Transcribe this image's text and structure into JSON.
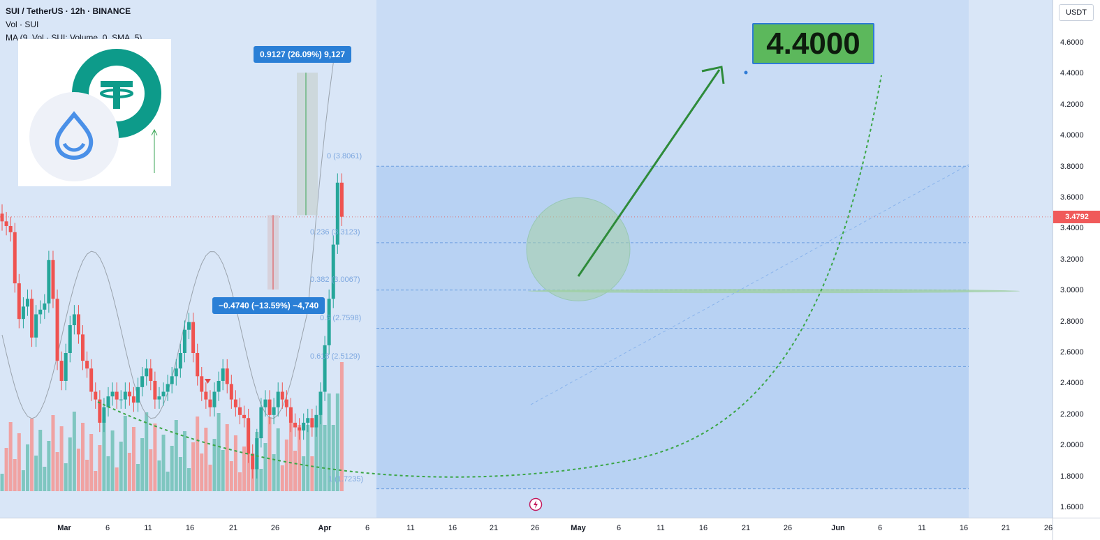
{
  "header": {
    "symbol_line": "SUI / TetherUS · 12h · BINANCE",
    "vol_line": "Vol · SUI",
    "ma_line": "MA (9, Vol · SUI: Volume, 0, SMA, 5)"
  },
  "price_axis": {
    "currency_button": "USDT",
    "ticks": [
      "4.6000",
      "4.4000",
      "4.2000",
      "4.0000",
      "3.8000",
      "3.6000",
      "3.4000",
      "3.2000",
      "3.0000",
      "2.8000",
      "2.6000",
      "2.4000",
      "2.2000",
      "2.0000",
      "1.8000",
      "1.6000"
    ],
    "current_price": "3.4792"
  },
  "time_axis": {
    "ticks": [
      {
        "label": "Mar",
        "bold": true
      },
      {
        "label": "6",
        "bold": false
      },
      {
        "label": "11",
        "bold": false
      },
      {
        "label": "16",
        "bold": false
      },
      {
        "label": "21",
        "bold": false
      },
      {
        "label": "26",
        "bold": false
      },
      {
        "label": "Apr",
        "bold": true
      },
      {
        "label": "6",
        "bold": false
      },
      {
        "label": "11",
        "bold": false
      },
      {
        "label": "16",
        "bold": false
      },
      {
        "label": "21",
        "bold": false
      },
      {
        "label": "26",
        "bold": false
      },
      {
        "label": "May",
        "bold": true
      },
      {
        "label": "6",
        "bold": false
      },
      {
        "label": "11",
        "bold": false
      },
      {
        "label": "16",
        "bold": false
      },
      {
        "label": "21",
        "bold": false
      },
      {
        "label": "26",
        "bold": false
      },
      {
        "label": "Jun",
        "bold": true
      },
      {
        "label": "6",
        "bold": false
      },
      {
        "label": "11",
        "bold": false
      },
      {
        "label": "16",
        "bold": false
      },
      {
        "label": "21",
        "bold": false
      },
      {
        "label": "26",
        "bold": false
      }
    ]
  },
  "annotations": {
    "up_measure": "0.9127 (26.09%) 9,127",
    "down_measure": "−0.4740 (−13.59%) −4,740",
    "target": "4.4000",
    "fib_levels": [
      {
        "label": "0 (3.8061)",
        "price": 3.8061
      },
      {
        "label": "0.236 (3.3123)",
        "price": 3.3123
      },
      {
        "label": "0.382 (3.0067)",
        "price": 3.0067
      },
      {
        "label": "0.5 (2.7598)",
        "price": 2.7598
      },
      {
        "label": "0.618 (2.5129)",
        "price": 2.5129
      },
      {
        "label": "1 (1.7235)",
        "price": 1.7235
      }
    ]
  },
  "colors": {
    "up": "#26a69a",
    "down": "#ef5350",
    "vol_up": "#7fc6c0",
    "vol_down": "#f0a2a2",
    "fib_zone": "#b8d2f3",
    "arrow": "#2e8b3a",
    "target_bg": "#5cb85c",
    "measure_bg": "#2a7fd6"
  },
  "chart_data": {
    "type": "candlestick",
    "title": "SUI / TetherUS · 12h · BINANCE",
    "ylabel": "USDT",
    "ylim": [
      1.6,
      4.6
    ],
    "x_ticks": [
      "Mar",
      "6",
      "11",
      "16",
      "21",
      "26",
      "Apr",
      "6",
      "11",
      "16",
      "21",
      "26",
      "May",
      "6",
      "11",
      "16",
      "21",
      "26",
      "Jun",
      "6",
      "11",
      "16",
      "21",
      "26"
    ],
    "current_price": 3.4792,
    "target_price": 4.4,
    "close_series_approx": [
      3.45,
      3.42,
      3.38,
      3.05,
      2.82,
      2.9,
      2.95,
      2.7,
      2.85,
      2.88,
      2.92,
      3.2,
      2.95,
      2.55,
      2.42,
      2.6,
      2.78,
      2.85,
      2.72,
      2.55,
      2.5,
      2.35,
      2.3,
      2.15,
      2.25,
      2.32,
      2.35,
      2.3,
      2.3,
      2.35,
      2.32,
      2.28,
      2.38,
      2.45,
      2.5,
      2.42,
      2.3,
      2.32,
      2.35,
      2.4,
      2.45,
      2.5,
      2.6,
      2.75,
      2.8,
      2.6,
      2.45,
      2.35,
      2.3,
      2.25,
      2.35,
      2.42,
      2.5,
      2.4,
      2.3,
      2.25,
      2.2,
      2.18,
      1.95,
      1.85,
      2.05,
      2.25,
      2.3,
      2.2,
      2.25,
      2.35,
      2.3,
      2.25,
      2.15,
      2.12,
      2.1,
      2.15,
      2.18,
      2.12,
      2.2,
      2.35,
      2.65,
      2.95,
      3.3,
      3.7,
      3.48
    ]
  }
}
